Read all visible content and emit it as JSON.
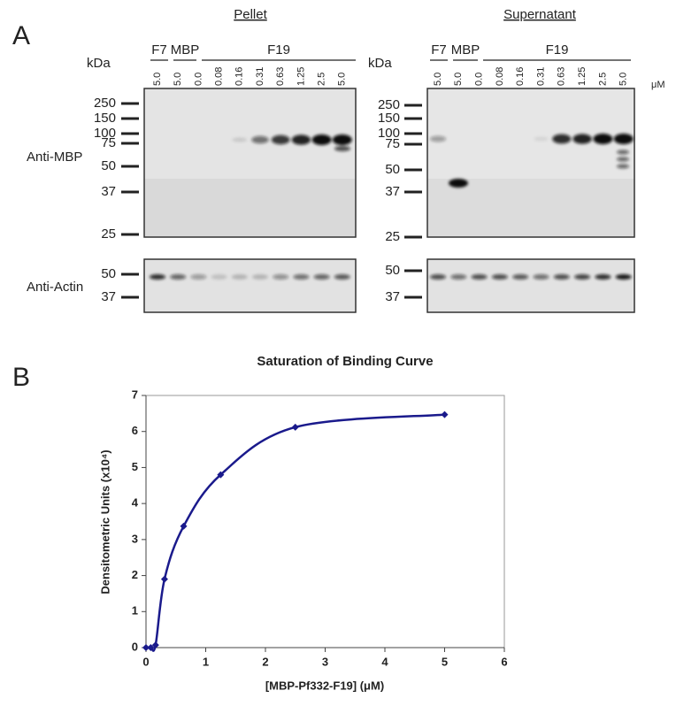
{
  "panel_a": {
    "label": "A",
    "headers": [
      "Pellet",
      "Supernatant"
    ],
    "unit_kda": "kDa",
    "unit_conc": "μM",
    "groups": [
      "F7",
      "MBP",
      "F19"
    ],
    "lanes": [
      "5.0",
      "5.0",
      "0.0",
      "0.08",
      "0.16",
      "0.31",
      "0.63",
      "1.25",
      "2.5",
      "5.0"
    ],
    "rows": [
      "Anti-MBP",
      "Anti-Actin"
    ],
    "mbp_markers": [
      "250",
      "150",
      "100",
      "75",
      "50",
      "37",
      "25"
    ],
    "actin_markers": [
      "50",
      "37"
    ]
  },
  "panel_b_label": "B",
  "chart_data": {
    "type": "line",
    "title": "Saturation of Binding Curve",
    "x_label": "[MBP-Pf332-F19] (μM)",
    "y_label": "Densitometric Units (x10⁴)",
    "x": [
      0,
      0.08,
      0.16,
      0.31,
      0.63,
      1.25,
      2.5,
      5.0
    ],
    "values": [
      0,
      0,
      0.07,
      1.9,
      3.37,
      4.8,
      6.12,
      6.47
    ],
    "color": "#1a1a8c",
    "smooth": true,
    "marker": "diamond",
    "xlim": [
      0,
      6
    ],
    "ylim": [
      0,
      7
    ],
    "xticks": [
      0,
      1,
      2,
      3,
      4,
      5,
      6
    ],
    "yticks": [
      0,
      1,
      2,
      3,
      4,
      5,
      6,
      7
    ]
  }
}
